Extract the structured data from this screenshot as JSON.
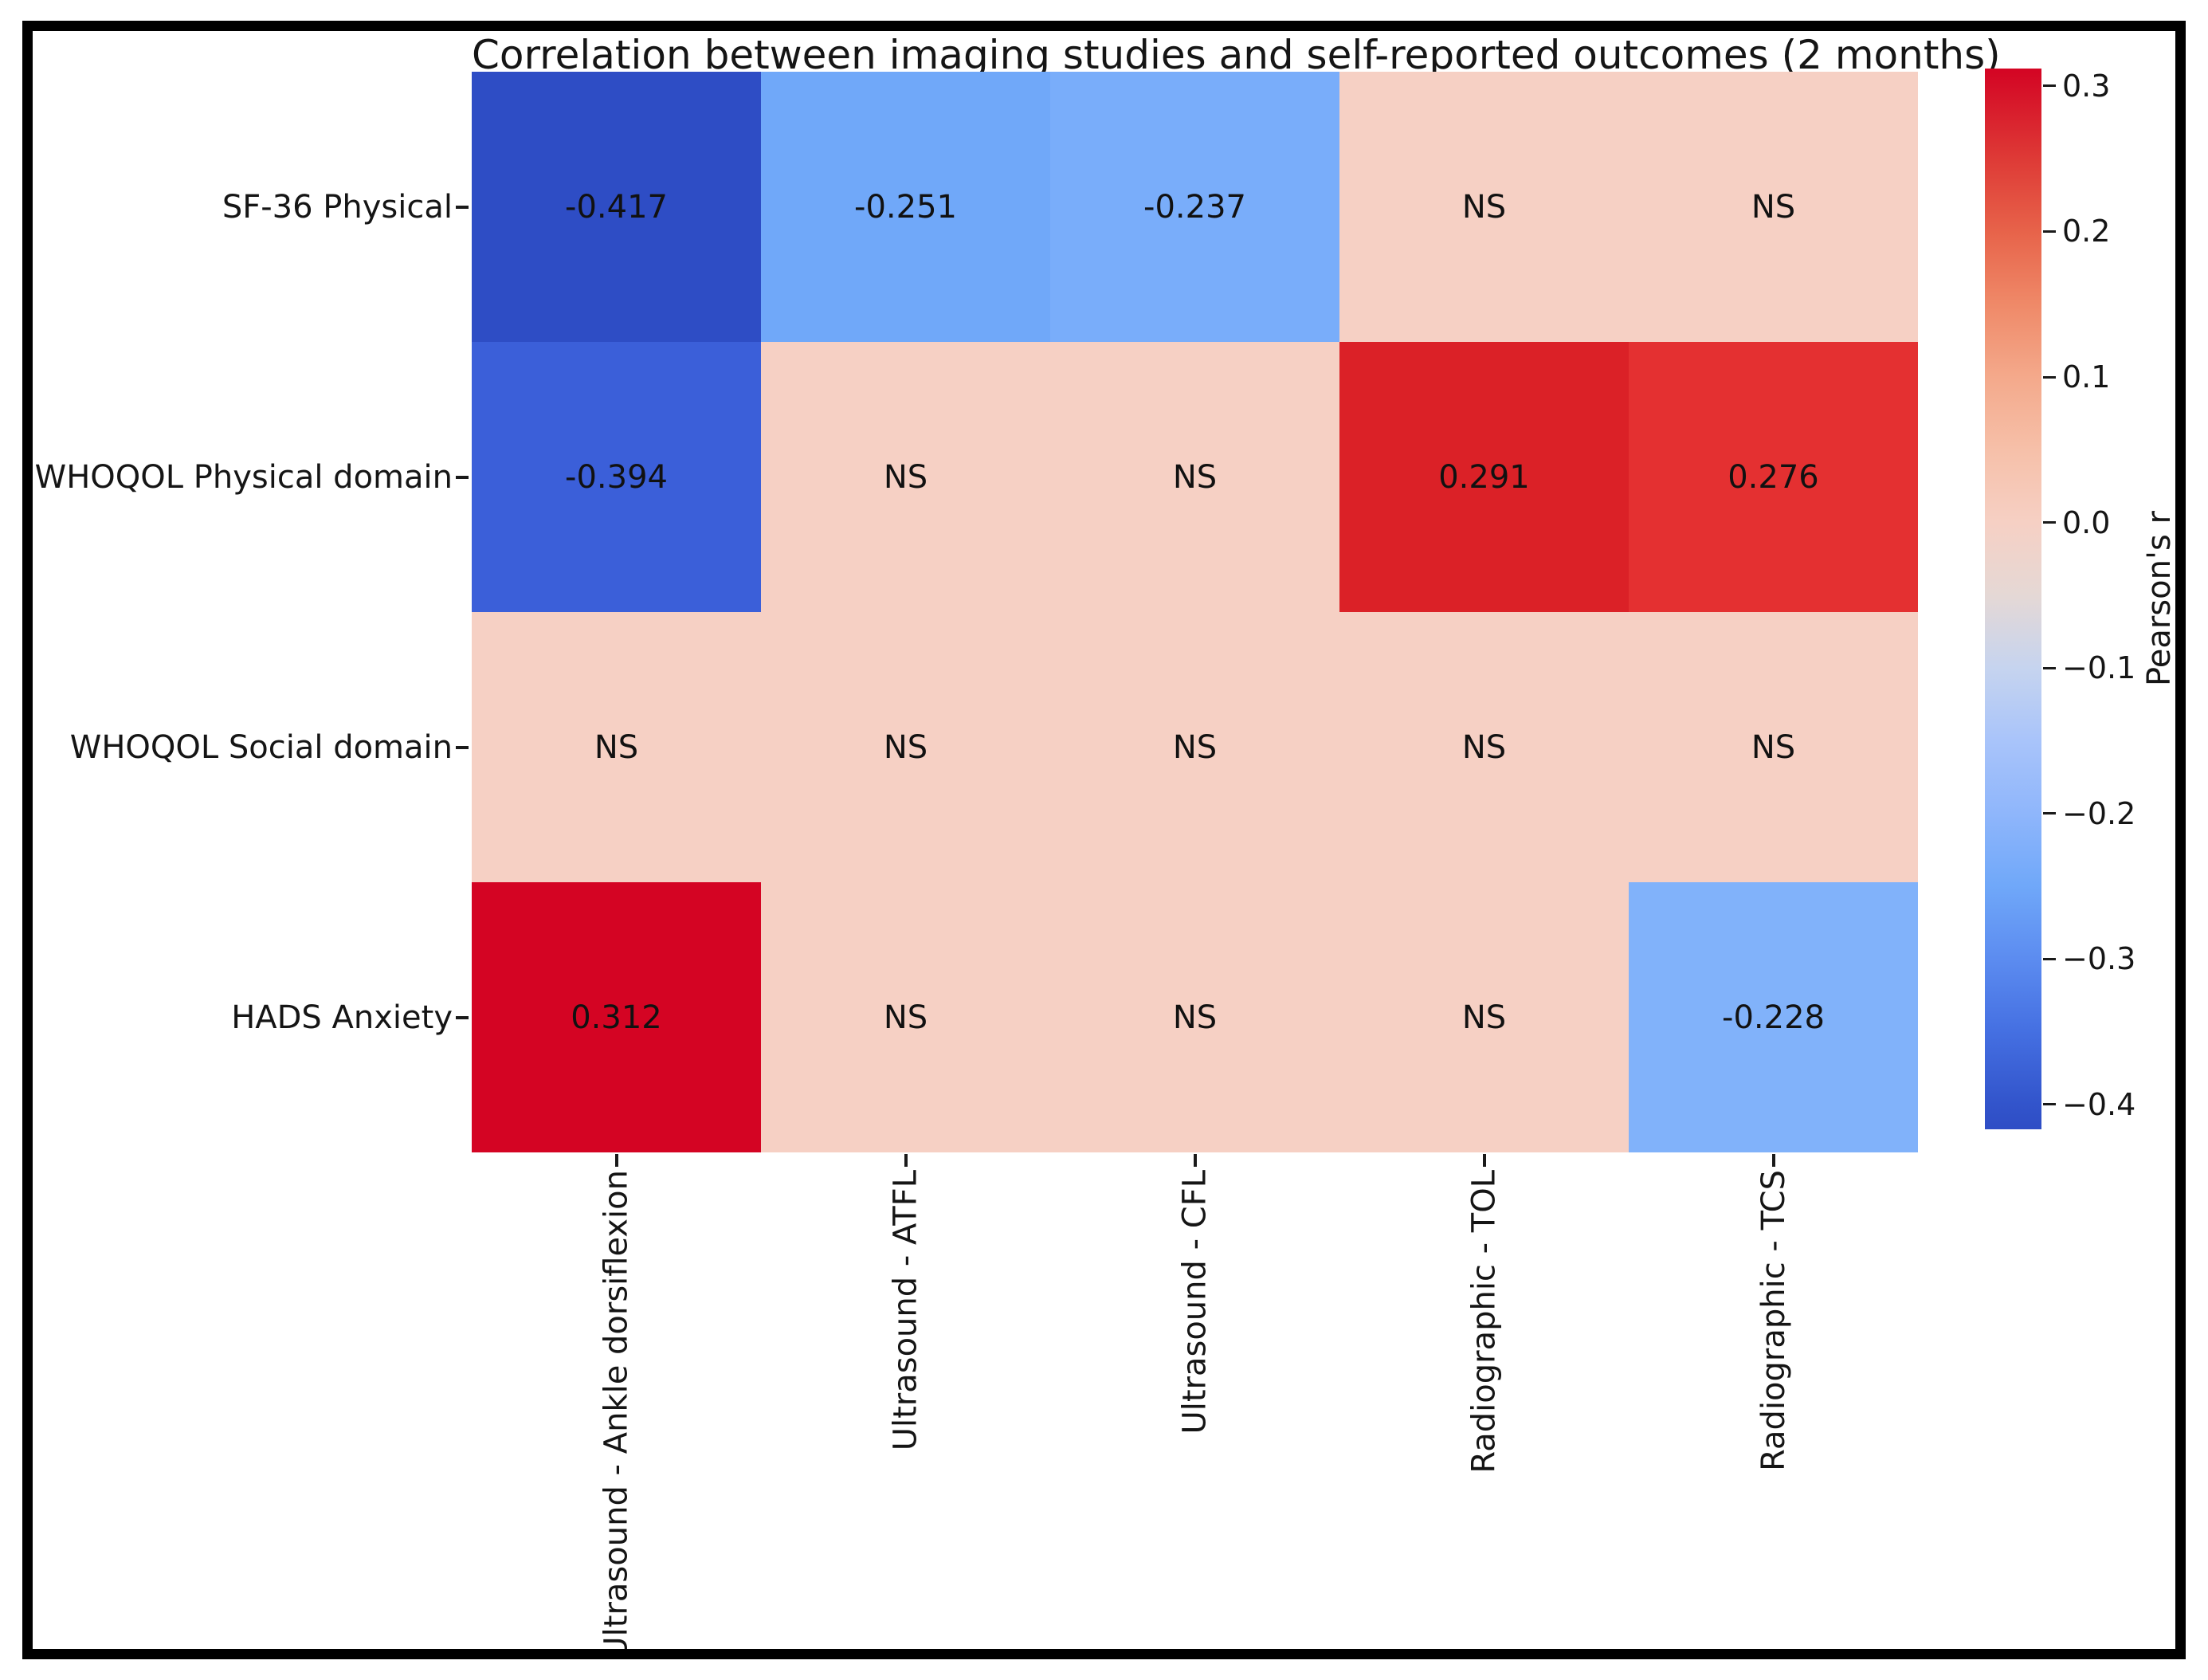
{
  "chart_data": {
    "type": "heatmap",
    "title": "Correlation between imaging studies and self-reported outcomes (2 months)",
    "rows": [
      "SF-36 Physical",
      "WHOQOL Physical domain",
      "WHOQOL Social domain",
      "HADS Anxiety"
    ],
    "columns": [
      "Ultrasound - Ankle dorsiflexion",
      "Ultrasound - ATFL",
      "Ultrasound - CFL",
      "Radiographic - TOL",
      "Radiographic - TCS"
    ],
    "ns_meaning_shown_as": "NS",
    "cells": [
      [
        {
          "text": "-0.417",
          "value": -0.417,
          "color": "#2e4dc5"
        },
        {
          "text": "-0.251",
          "value": -0.251,
          "color": "#70a8f9"
        },
        {
          "text": "-0.237",
          "value": -0.237,
          "color": "#79adfa"
        },
        {
          "text": "NS",
          "value": null,
          "color": "#f6d0c4"
        },
        {
          "text": "NS",
          "value": null,
          "color": "#f6d0c4"
        }
      ],
      [
        {
          "text": "-0.394",
          "value": -0.394,
          "color": "#3b5fd9"
        },
        {
          "text": "NS",
          "value": null,
          "color": "#f6d0c4"
        },
        {
          "text": "NS",
          "value": null,
          "color": "#f6d0c4"
        },
        {
          "text": "0.291",
          "value": 0.291,
          "color": "#db2127"
        },
        {
          "text": "0.276",
          "value": 0.276,
          "color": "#e43031"
        }
      ],
      [
        {
          "text": "NS",
          "value": null,
          "color": "#f6d0c4"
        },
        {
          "text": "NS",
          "value": null,
          "color": "#f6d0c4"
        },
        {
          "text": "NS",
          "value": null,
          "color": "#f6d0c4"
        },
        {
          "text": "NS",
          "value": null,
          "color": "#f6d0c4"
        },
        {
          "text": "NS",
          "value": null,
          "color": "#f6d0c4"
        }
      ],
      [
        {
          "text": "0.312",
          "value": 0.312,
          "color": "#d40423"
        },
        {
          "text": "NS",
          "value": null,
          "color": "#f6d0c4"
        },
        {
          "text": "NS",
          "value": null,
          "color": "#f6d0c4"
        },
        {
          "text": "NS",
          "value": null,
          "color": "#f6d0c4"
        },
        {
          "text": "-0.228",
          "value": -0.228,
          "color": "#81b2fa"
        }
      ]
    ],
    "colorbar": {
      "label": "Pearson's r",
      "vmin": -0.417,
      "vmax": 0.312,
      "ticks": [
        {
          "label": "0.3",
          "value": 0.3
        },
        {
          "label": "0.2",
          "value": 0.2
        },
        {
          "label": "0.1",
          "value": 0.1
        },
        {
          "label": "0.0",
          "value": 0.0
        },
        {
          "label": "−0.1",
          "value": -0.1
        },
        {
          "label": "−0.2",
          "value": -0.2
        },
        {
          "label": "−0.3",
          "value": -0.3
        },
        {
          "label": "−0.4",
          "value": -0.4
        }
      ],
      "gradient": [
        {
          "pos": 0,
          "color": "#d40423"
        },
        {
          "pos": 1.6,
          "color": "#d50e27"
        },
        {
          "pos": 8.5,
          "color": "#de3a36"
        },
        {
          "pos": 15.4,
          "color": "#e7634a"
        },
        {
          "pos": 22.2,
          "color": "#ef8968"
        },
        {
          "pos": 29.1,
          "color": "#f4a98b"
        },
        {
          "pos": 36,
          "color": "#f6c0a9"
        },
        {
          "pos": 42.8,
          "color": "#f6d0c4"
        },
        {
          "pos": 49.6,
          "color": "#e5d8d5"
        },
        {
          "pos": 56.5,
          "color": "#c6d4ef"
        },
        {
          "pos": 63.3,
          "color": "#a9c4fa"
        },
        {
          "pos": 70.2,
          "color": "#8fb6fb"
        },
        {
          "pos": 77,
          "color": "#70a8f9"
        },
        {
          "pos": 83.9,
          "color": "#5c8cf0"
        },
        {
          "pos": 90.7,
          "color": "#4570e2"
        },
        {
          "pos": 97.7,
          "color": "#3254cb"
        },
        {
          "pos": 100,
          "color": "#2e4dc5"
        }
      ]
    },
    "axis_text_color": "#151515",
    "annotation_text_color": "#111111"
  }
}
